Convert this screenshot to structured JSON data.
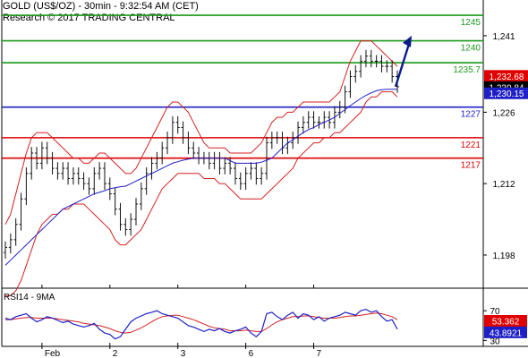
{
  "header": {
    "line1": "GOLD (US$/OZ) - 30min - 9:32:54 AM (CET)",
    "line2": "Research © 2017 TRADING CENTRAL"
  },
  "chart_data": {
    "type": "line",
    "price_panel": {
      "y_ticks": [
        "1,241",
        "1,226",
        "1,212",
        "1,198"
      ],
      "y_tick_values": [
        1241,
        1226,
        1212,
        1198
      ],
      "ylim": [
        1191.5,
        1248
      ],
      "levels": [
        {
          "value": 1245,
          "label": "1245",
          "color": "#1a9a1a"
        },
        {
          "value": 1240,
          "label": "1240",
          "color": "#1a9a1a"
        },
        {
          "value": 1235.7,
          "label": "1235.7",
          "color": "#1a9a1a"
        },
        {
          "value": 1227,
          "label": "1227",
          "color": "#1f1fc8"
        },
        {
          "value": 1221,
          "label": "1221",
          "color": "#e00000"
        },
        {
          "value": 1217,
          "label": "1217",
          "color": "#e00000"
        }
      ],
      "badges": [
        {
          "value": 1232.68,
          "label": "1,232.68",
          "color": "#e00000"
        },
        {
          "value": 1230.84,
          "label": "1,230.84",
          "color": "#000000"
        },
        {
          "value": 1230.15,
          "label": "1,230.15",
          "color": "#1f1fc8"
        }
      ],
      "close": [
        1199.5,
        1201,
        1204,
        1209,
        1214,
        1218,
        1216,
        1219,
        1217,
        1215,
        1214,
        1215,
        1213,
        1214,
        1213,
        1212,
        1211,
        1214,
        1215,
        1212,
        1210,
        1207,
        1204,
        1203,
        1205,
        1208,
        1211,
        1214,
        1216,
        1217,
        1219,
        1221,
        1224,
        1223,
        1221,
        1219,
        1218,
        1217,
        1217,
        1216,
        1217,
        1215,
        1216,
        1215,
        1213,
        1212,
        1214,
        1215,
        1213,
        1214,
        1220,
        1221,
        1221,
        1219,
        1220,
        1221,
        1223,
        1224,
        1225,
        1224,
        1224,
        1225,
        1224,
        1226,
        1227,
        1230,
        1233,
        1234,
        1236,
        1237,
        1236,
        1236,
        1235,
        1235,
        1233,
        1231
      ],
      "moving_average": [
        1196,
        1197,
        1198,
        1199,
        1200,
        1201,
        1202,
        1203,
        1204,
        1205,
        1206,
        1207,
        1207.5,
        1208,
        1208.5,
        1209,
        1209.5,
        1210,
        1210.3,
        1210.6,
        1211,
        1211.2,
        1211.4,
        1211.5,
        1212,
        1212.5,
        1213,
        1213.5,
        1214,
        1214.5,
        1215,
        1215.5,
        1216,
        1216.3,
        1216.6,
        1216.8,
        1217,
        1217,
        1217,
        1217,
        1217,
        1217,
        1217,
        1216.5,
        1216,
        1216,
        1216,
        1216,
        1216,
        1216.2,
        1216.6,
        1217,
        1218,
        1219,
        1220,
        1220.6,
        1221.3,
        1222,
        1222.6,
        1223,
        1223.6,
        1224,
        1224.5,
        1225,
        1225.8,
        1226.5,
        1227.3,
        1228,
        1228.7,
        1229.3,
        1229.8,
        1230.2,
        1230.4,
        1230.5,
        1230.5,
        1230.5
      ],
      "bollinger_upper": [
        1204,
        1206,
        1210,
        1214,
        1218,
        1221,
        1222,
        1222,
        1222,
        1221,
        1220,
        1219,
        1218,
        1217,
        1217,
        1216,
        1216,
        1217,
        1218,
        1218,
        1217,
        1216,
        1215,
        1214,
        1214,
        1215,
        1217,
        1219,
        1221,
        1223,
        1225,
        1227,
        1228,
        1228,
        1227,
        1226,
        1224,
        1222,
        1220,
        1219,
        1219,
        1219,
        1219,
        1218,
        1218,
        1218,
        1218,
        1218,
        1219,
        1220,
        1222,
        1224,
        1225,
        1225,
        1226,
        1226,
        1227,
        1228,
        1228,
        1228,
        1228,
        1228,
        1228,
        1229,
        1230,
        1233,
        1236,
        1238,
        1240,
        1240,
        1240,
        1239,
        1238,
        1237,
        1236,
        1235
      ],
      "bollinger_lower": [
        1190,
        1190,
        1191,
        1193,
        1196,
        1199,
        1202,
        1204,
        1205,
        1206,
        1206,
        1207,
        1207,
        1208,
        1208,
        1208,
        1207,
        1206,
        1205,
        1204,
        1203,
        1201,
        1200,
        1200,
        1201,
        1202,
        1203,
        1205,
        1207,
        1209,
        1211,
        1212,
        1213,
        1214,
        1214,
        1214,
        1214,
        1214,
        1213,
        1213,
        1213,
        1212,
        1212,
        1211,
        1210,
        1209,
        1209,
        1209,
        1209,
        1209,
        1210,
        1211,
        1212,
        1213,
        1214,
        1215,
        1217,
        1218,
        1219,
        1220,
        1220,
        1221,
        1221,
        1222,
        1222,
        1223,
        1224,
        1225,
        1226,
        1228,
        1229,
        1229,
        1230,
        1230,
        1230,
        1229
      ],
      "projection": {
        "from": 1231,
        "to": 1241
      }
    },
    "rsi_panel": {
      "title": "RSI14 - 9MA",
      "y_ticks": [
        "70",
        "30"
      ],
      "y_tick_values": [
        70,
        30
      ],
      "ylim": [
        22,
        98
      ],
      "badges": [
        {
          "value": 53.362,
          "label": "53.362",
          "color": "#e00000"
        },
        {
          "value": 43.8921,
          "label": "43.8921",
          "color": "#1f1fc8"
        }
      ],
      "rsi": [
        60,
        58,
        62,
        64,
        66,
        60,
        55,
        58,
        62,
        60,
        57,
        54,
        56,
        52,
        50,
        48,
        50,
        53,
        45,
        40,
        38,
        32,
        35,
        45,
        55,
        60,
        63,
        66,
        68,
        70,
        66,
        64,
        62,
        60,
        55,
        50,
        48,
        45,
        42,
        45,
        43,
        46,
        42,
        40,
        43,
        45,
        48,
        40,
        35,
        42,
        66,
        68,
        62,
        58,
        64,
        68,
        60,
        66,
        64,
        58,
        62,
        56,
        60,
        62,
        64,
        68,
        66,
        64,
        70,
        72,
        68,
        70,
        62,
        56,
        58,
        45
      ],
      "ma9": [
        58,
        58,
        59,
        60,
        61,
        61,
        60,
        60,
        60,
        60,
        59,
        58,
        57,
        56,
        55,
        53,
        52,
        51,
        50,
        48,
        46,
        43,
        41,
        40,
        41,
        44,
        47,
        51,
        55,
        59,
        62,
        63,
        64,
        64,
        62,
        60,
        58,
        55,
        52,
        49,
        47,
        46,
        45,
        43,
        43,
        43,
        44,
        43,
        42,
        42,
        46,
        51,
        55,
        58,
        60,
        62,
        62,
        63,
        63,
        62,
        61,
        60,
        60,
        60,
        61,
        62,
        63,
        63,
        64,
        65,
        66,
        67,
        66,
        64,
        62,
        58
      ]
    },
    "x_ticks": [
      {
        "label": "Feb",
        "index": 7
      },
      {
        "label": "2",
        "index": 20
      },
      {
        "label": "3",
        "index": 33
      },
      {
        "label": "6",
        "index": 46
      },
      {
        "label": "7",
        "index": 59
      }
    ]
  }
}
